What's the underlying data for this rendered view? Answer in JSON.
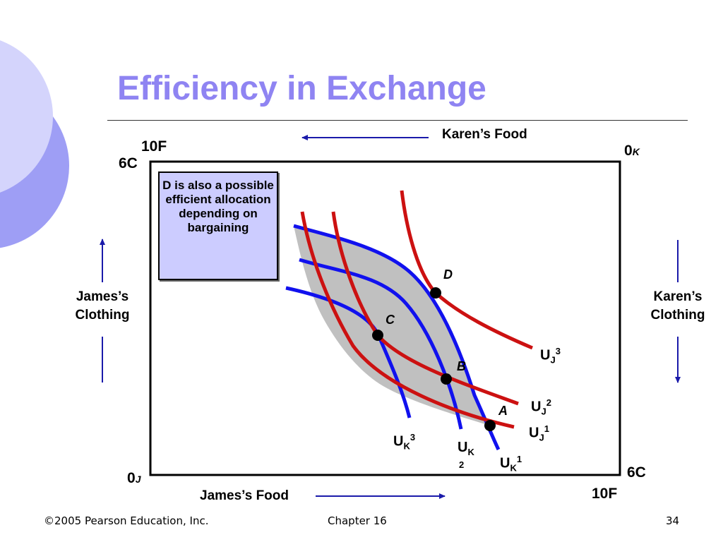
{
  "title": "Efficiency in Exchange",
  "note": "D is also a possible efficient allocation depending on bargaining",
  "axes": {
    "karens_food": "Karen’s Food",
    "james_food": "James’s Food",
    "james_clothing": [
      "James’s",
      "Clothing"
    ],
    "karens_clothing": [
      "Karen’s",
      "Clothing"
    ],
    "top_left_food": "10F",
    "top_left_clothing": "6C",
    "bottom_right_food": "10F",
    "bottom_right_clothing": "6C",
    "origin_james": {
      "base": "0",
      "sub": "J"
    },
    "origin_karen": {
      "base": "0",
      "sub": "K"
    }
  },
  "points": [
    "A",
    "B",
    "C",
    "D"
  ],
  "curves": {
    "uj1": {
      "base": "U",
      "sub": "J",
      "sup": "1"
    },
    "uj2": {
      "base": "U",
      "sub": "J",
      "sup": "2"
    },
    "uj3": {
      "base": "U",
      "sub": "J",
      "sup": "3"
    },
    "uk1": {
      "base": "U",
      "sub": "K",
      "sup": "1"
    },
    "uk2": {
      "base": "U",
      "sub": "K",
      "sup": "2"
    },
    "uk3": {
      "base": "U",
      "sub": "K",
      "sup": "3"
    }
  },
  "colors": {
    "james_curves": "#cc1111",
    "karen_curves": "#1111ee",
    "lens_fill": "#c0c0c0",
    "arrows": "#1a1aaa",
    "title": "#8f84f2"
  },
  "footer": {
    "copyright": "©2005 Pearson Education, Inc.",
    "chapter": "Chapter 16",
    "page": "34"
  }
}
